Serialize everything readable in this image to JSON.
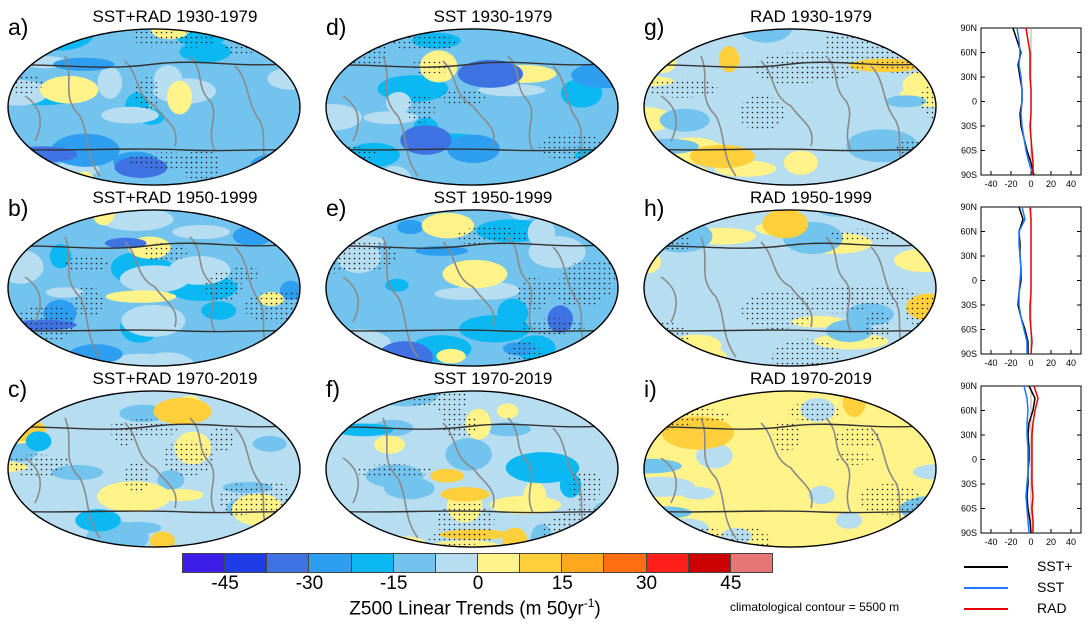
{
  "chart_data": {
    "type": "map-panels",
    "panels": [
      {
        "label": "a)",
        "title": "SST+RAD 1930-1979",
        "row": 0,
        "col": 0,
        "pattern": "cold"
      },
      {
        "label": "b)",
        "title": "SST+RAD 1950-1999",
        "row": 1,
        "col": 0,
        "pattern": "cold"
      },
      {
        "label": "c)",
        "title": "SST+RAD 1970-2019",
        "row": 2,
        "col": 0,
        "pattern": "mixed"
      },
      {
        "label": "d)",
        "title": "SST 1930-1979",
        "row": 0,
        "col": 1,
        "pattern": "cold"
      },
      {
        "label": "e)",
        "title": "SST 1950-1999",
        "row": 1,
        "col": 1,
        "pattern": "cold"
      },
      {
        "label": "f)",
        "title": "SST 1970-2019",
        "row": 2,
        "col": 1,
        "pattern": "mixed"
      },
      {
        "label": "g)",
        "title": "RAD 1930-1979",
        "row": 0,
        "col": 2,
        "pattern": "warm-patchy"
      },
      {
        "label": "h)",
        "title": "RAD 1950-1999",
        "row": 1,
        "col": 2,
        "pattern": "warm-patchy"
      },
      {
        "label": "i)",
        "title": "RAD 1970-2019",
        "row": 2,
        "col": 2,
        "pattern": "warm"
      }
    ],
    "colorbar": {
      "colors": [
        "#3d1de8",
        "#1f3de6",
        "#3f72e2",
        "#2e9ef0",
        "#0cb8f2",
        "#73c3ef",
        "#b6ddf0",
        "#fff38a",
        "#ffd03c",
        "#ffa71d",
        "#ff6f12",
        "#ff1f1a",
        "#cc0000",
        "#e87575"
      ],
      "tick_labels": [
        "-45",
        "-30",
        "-15",
        "0",
        "15",
        "30",
        "45"
      ],
      "tick_boundary_index": [
        1,
        3,
        5,
        7,
        9,
        11,
        13
      ],
      "title": "Z500 Linear Trends (m 50yr",
      "title_sup": "-1",
      "title_end": ")"
    },
    "note": "climatological contour = 5500 m",
    "profiles": {
      "ylabels": [
        "90N",
        "60N",
        "30N",
        "0",
        "30S",
        "60S",
        "90S"
      ],
      "xlabels": [
        "-40",
        "-20",
        "0",
        "20",
        "40"
      ],
      "xlim": [
        -50,
        50
      ],
      "lat": [
        90,
        75,
        60,
        45,
        30,
        15,
        0,
        -15,
        -30,
        -45,
        -60,
        -75,
        -90
      ],
      "series_style": [
        {
          "name": "SST+",
          "color": "#000000"
        },
        {
          "name": "SST",
          "color": "#1e78ff"
        },
        {
          "name": "RAD",
          "color": "#e60000"
        }
      ],
      "rows": [
        {
          "SST+": [
            -18,
            -14,
            -10,
            -13,
            -11,
            -9,
            -9,
            -11,
            -10,
            -7,
            -4,
            0,
            3
          ],
          "SST": [
            -14,
            -12,
            -11,
            -12,
            -10,
            -9,
            -9,
            -10,
            -9,
            -7,
            -5,
            -2,
            2
          ],
          "RAD": [
            -5,
            -3,
            -1,
            -1,
            -1,
            0,
            0,
            0,
            -1,
            0,
            1,
            2,
            2
          ]
        },
        {
          "SST+": [
            -12,
            -8,
            -12,
            -11,
            -11,
            -10,
            -10,
            -12,
            -13,
            -10,
            -6,
            -3,
            -3
          ],
          "SST": [
            -9,
            -6,
            -12,
            -12,
            -11,
            -10,
            -11,
            -12,
            -12,
            -10,
            -7,
            -4,
            -4
          ],
          "RAD": [
            -1,
            0,
            0,
            0,
            0,
            0,
            0,
            0,
            -1,
            -1,
            0,
            1,
            0
          ]
        },
        {
          "SST+": [
            -2,
            4,
            2,
            -2,
            -3,
            -2,
            -2,
            -3,
            -3,
            -4,
            -3,
            -1,
            0
          ],
          "SST": [
            -7,
            -4,
            -3,
            -4,
            -4,
            -3,
            -3,
            -3,
            -4,
            -5,
            -4,
            -3,
            -2
          ],
          "RAD": [
            3,
            7,
            4,
            2,
            1,
            1,
            1,
            1,
            1,
            2,
            1,
            2,
            2
          ]
        }
      ]
    }
  }
}
